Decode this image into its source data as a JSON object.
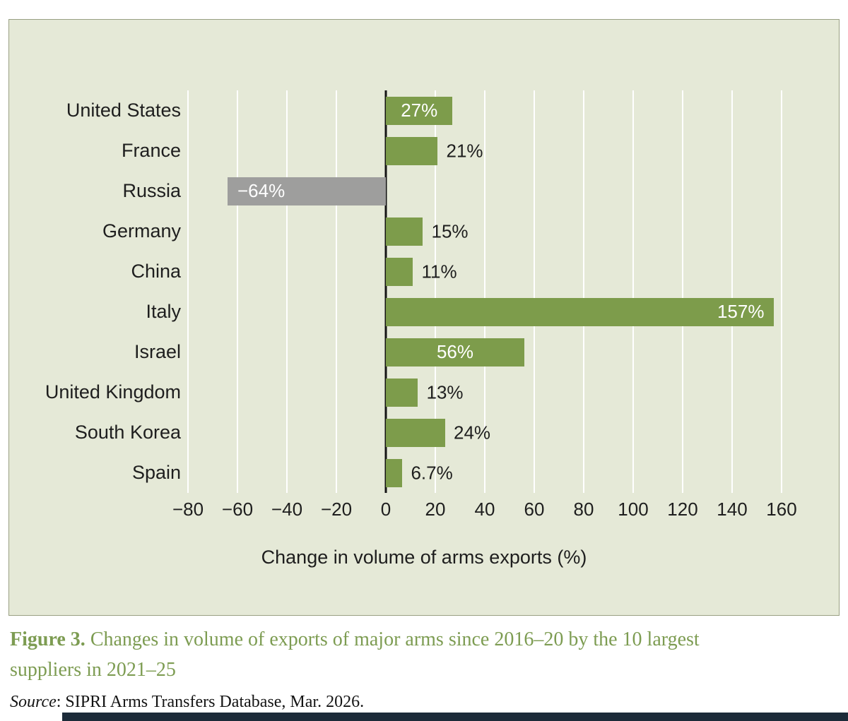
{
  "figure": {
    "caption_label": "Figure 3.",
    "caption_text": " Changes in volume of exports of major arms since 2016–20 by the 10 largest suppliers in 2021–25",
    "source_prefix": "Source",
    "source_text": ": SIPRI Arms Transfers Database, Mar. 2026."
  },
  "chart_data": {
    "type": "bar",
    "orientation": "horizontal",
    "title": "",
    "categories": [
      "United States",
      "France",
      "Russia",
      "Germany",
      "China",
      "Italy",
      "Israel",
      "United Kingdom",
      "South Korea",
      "Spain"
    ],
    "values": [
      27,
      21,
      -64,
      15,
      11,
      157,
      56,
      13,
      24,
      6.7
    ],
    "value_labels": [
      "27%",
      "21%",
      "−64%",
      "15%",
      "11%",
      "157%",
      "56%",
      "13%",
      "24%",
      "6.7%"
    ],
    "label_placement": [
      "inside-center",
      "outside",
      "inside-left",
      "outside",
      "outside",
      "inside-right",
      "inside-center",
      "outside",
      "outside",
      "outside"
    ],
    "bar_colors": [
      "green",
      "green",
      "gray",
      "green",
      "green",
      "green",
      "green",
      "green",
      "green",
      "green"
    ],
    "xlabel": "Change in volume of arms exports (%)",
    "xlim": [
      -80,
      160
    ],
    "xticks": [
      -80,
      -60,
      -40,
      -20,
      0,
      20,
      40,
      60,
      80,
      100,
      120,
      140,
      160
    ],
    "xtick_labels": [
      "−80",
      "−60",
      "−40",
      "−20",
      "0",
      "20",
      "40",
      "60",
      "80",
      "100",
      "120",
      "140",
      "160"
    ],
    "grid": "vertical-white-gridlines",
    "legend": "none",
    "colors": {
      "positive_bar": "#7d9c4b",
      "negative_bar": "#9e9e9d",
      "panel_background": "#e5e9d7",
      "gridline": "#ffffff",
      "zero_line": "#141414",
      "caption_green": "#7d9c52",
      "bottom_bar": "#1c2b39"
    }
  }
}
